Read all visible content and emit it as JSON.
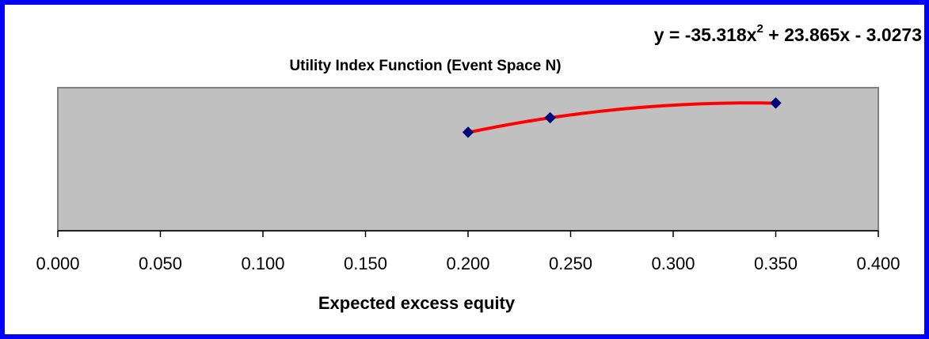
{
  "chart_data": {
    "type": "scatter",
    "title": "Utility Index Function (Event Space N)",
    "xlabel": "Expected excess equity",
    "ylabel": "",
    "xlim": [
      0,
      0.4
    ],
    "x_ticks": [
      "0.000",
      "0.050",
      "0.100",
      "0.150",
      "0.200",
      "0.250",
      "0.300",
      "0.350",
      "0.400"
    ],
    "y_axis_visible": false,
    "grid": false,
    "legend": "none",
    "plot_area_color": "#c0c0c0",
    "series": [
      {
        "marker": "diamond",
        "color": "#000080",
        "x": [
          0.2,
          0.24,
          0.35
        ],
        "y": [
          0.3385,
          0.6668,
          1.0024
        ]
      }
    ],
    "trendline": {
      "type": "polynomial",
      "order": 2,
      "color": "#ff0000",
      "coefficients": [
        -35.318,
        23.865,
        -3.0273
      ],
      "x_range": [
        0.2,
        0.35
      ],
      "equation_label": {
        "prefix": "y = -35.318x",
        "exponent": "2",
        "suffix": " + 23.865x - 3.0273"
      }
    }
  }
}
